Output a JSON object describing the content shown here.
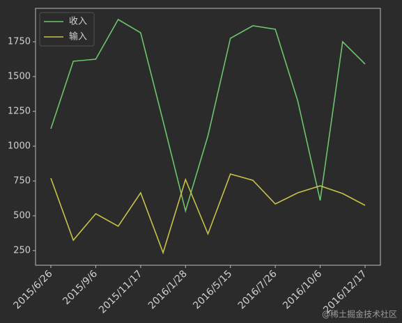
{
  "chart_data": {
    "type": "line",
    "categories": [
      "2015/6/26",
      null,
      "2015/9/6",
      null,
      "2015/11/17",
      null,
      "2016/1/28",
      null,
      "2016/5/15",
      null,
      "2016/7/26",
      null,
      "2016/10/6",
      null,
      "2016/12/17"
    ],
    "series": [
      {
        "name": "收入",
        "color": "#6cc46c",
        "values": [
          1125,
          1610,
          1625,
          1910,
          1815,
          1180,
          535,
          1075,
          1775,
          1865,
          1840,
          1325,
          610,
          1750,
          1590
        ]
      },
      {
        "name": "输入",
        "color": "#c8c24a",
        "values": [
          770,
          325,
          515,
          425,
          665,
          235,
          760,
          370,
          800,
          755,
          585,
          665,
          715,
          660,
          575
        ]
      }
    ],
    "ylim": [
      145,
      1990
    ],
    "yticks": [
      250,
      500,
      750,
      1000,
      1250,
      1500,
      1750
    ],
    "legend": "upper left",
    "watermark": "@稀土掘金技术社区"
  }
}
